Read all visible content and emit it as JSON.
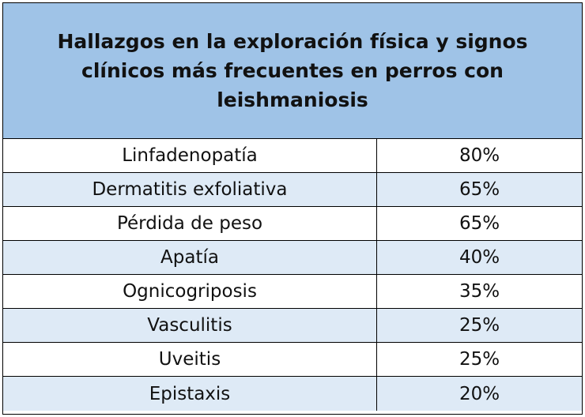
{
  "table": {
    "title": "Hallazgos en la exploración física y signos clínicos más frecuentes en perros con leishmaniosis",
    "rows": [
      {
        "sign": "Linfadenopatía",
        "percent": "80%"
      },
      {
        "sign": "Dermatitis exfoliativa",
        "percent": "65%"
      },
      {
        "sign": "Pérdida de peso",
        "percent": "65%"
      },
      {
        "sign": "Apatía",
        "percent": "40%"
      },
      {
        "sign": "Ognicogriposis",
        "percent": "35%"
      },
      {
        "sign": "Vasculitis",
        "percent": "25%"
      },
      {
        "sign": "Uveitis",
        "percent": "25%"
      },
      {
        "sign": "Epistaxis",
        "percent": "20%"
      }
    ],
    "colors": {
      "header_bg": "#9fc3e7",
      "row_alt_bg": "#deeaf6",
      "row_plain_bg": "#ffffff",
      "border": "#000000"
    }
  }
}
